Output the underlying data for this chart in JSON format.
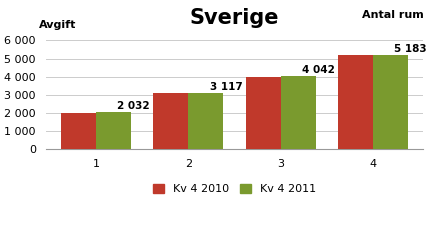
{
  "title": "Sverige",
  "ylabel_topleft": "Avgift",
  "xlabel_right": "Antal rum",
  "categories": [
    1,
    2,
    3,
    4
  ],
  "series": {
    "Kv 4 2010": [
      2000,
      3100,
      4000,
      5200
    ],
    "Kv 4 2011": [
      2032,
      3117,
      4042,
      5183
    ]
  },
  "labels_2011": [
    "2 032",
    "3 117",
    "4 042",
    "5 183"
  ],
  "colors": {
    "Kv 4 2010": "#c0392b",
    "Kv 4 2011": "#7a9a2e"
  },
  "ylim": [
    0,
    6600
  ],
  "yticks": [
    0,
    1000,
    2000,
    3000,
    4000,
    5000,
    6000
  ],
  "ytick_labels": [
    "0",
    "1 000",
    "2 000",
    "3 000",
    "4 000",
    "5 000",
    "6 000"
  ],
  "bar_width": 0.38,
  "background_color": "#ffffff",
  "title_fontsize": 15,
  "axis_label_fontsize": 8,
  "tick_fontsize": 8,
  "value_label_fontsize": 7.5,
  "legend_fontsize": 8
}
